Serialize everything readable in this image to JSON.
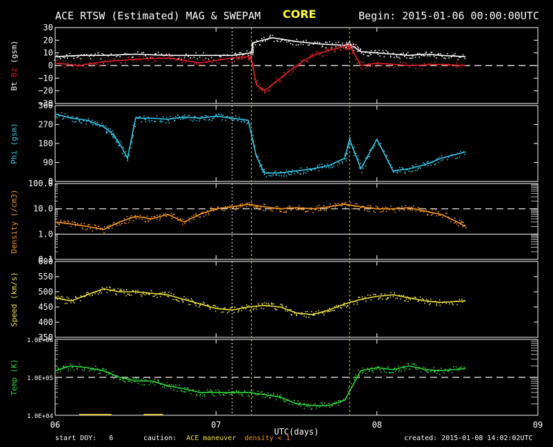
{
  "header": {
    "title": "ACE RTSW (Estimated) MAG & SWEPAM",
    "badge": "CORE",
    "begin": "Begin: 2015-01-06 00:00:00UTC"
  },
  "footer": {
    "start_doy_label": "start DOY:",
    "start_doy_value": "6",
    "caution_label": "caution:",
    "caution_maneuver": "ACE maneuver",
    "caution_density": "density < 1",
    "created": "created: 2015-01-08 14:02:02UTC"
  },
  "colors": {
    "bt": "#ffffff",
    "bz": "#e0202a",
    "phi": "#33c8e6",
    "density": "#f0961e",
    "speed": "#e8e03a",
    "temp": "#2fd43a",
    "marker": "#e8c84a",
    "vline": "#ffffff"
  },
  "chart_data": {
    "type": "scatter",
    "x_axis": {
      "label": "UTC(days)",
      "range": [
        6,
        9
      ],
      "ticks": [
        "06",
        "07",
        "08",
        "09"
      ]
    },
    "event_lines": {
      "white_dotted": [
        7.1
      ],
      "yellow_dotted": [
        7.22,
        7.83
      ]
    },
    "panels": [
      {
        "id": "mag-b",
        "ylabel_parts": [
          "Bt",
          "Bz",
          "(gsm)"
        ],
        "ylim": [
          -30,
          30
        ],
        "yticks": [
          "30",
          "20",
          "10",
          "0",
          "−10",
          "−20",
          "−30"
        ],
        "dashed_ref": 0,
        "series": [
          {
            "name": "Bt",
            "x": [
              6.0,
              6.15,
              6.3,
              6.5,
              6.7,
              6.9,
              7.1,
              7.22,
              7.23,
              7.35,
              7.5,
              7.65,
              7.8,
              7.83,
              7.9,
              8.0,
              8.1,
              8.2,
              8.3,
              8.4,
              8.55
            ],
            "y": [
              7,
              8,
              8,
              9,
              8,
              8,
              8,
              10,
              18,
              22,
              19,
              17,
              16,
              17,
              11,
              10,
              9,
              8,
              9,
              8,
              7
            ]
          },
          {
            "name": "Bz",
            "x": [
              6.0,
              6.15,
              6.3,
              6.5,
              6.7,
              6.9,
              7.1,
              7.2,
              7.22,
              7.25,
              7.3,
              7.4,
              7.5,
              7.6,
              7.7,
              7.8,
              7.83,
              7.9,
              8.0,
              8.2,
              8.4,
              8.55
            ],
            "y": [
              2,
              0,
              3,
              5,
              6,
              2,
              6,
              7,
              5,
              -15,
              -20,
              -10,
              0,
              8,
              12,
              15,
              16,
              0,
              2,
              0,
              1,
              0
            ]
          }
        ]
      },
      {
        "id": "mag-phi",
        "ylabel_parts": [
          "Phi",
          "(gsm)"
        ],
        "ylim": [
          0,
          360
        ],
        "yticks": [
          "360",
          "270",
          "180",
          "90",
          "0"
        ],
        "dashed_ref": null,
        "series": [
          {
            "name": "Phi",
            "x": [
              6.0,
              6.1,
              6.2,
              6.3,
              6.35,
              6.4,
              6.45,
              6.5,
              6.6,
              6.7,
              6.8,
              6.9,
              7.0,
              7.1,
              7.2,
              7.25,
              7.3,
              7.4,
              7.5,
              7.6,
              7.7,
              7.8,
              7.83,
              7.9,
              8.0,
              8.1,
              8.2,
              8.3,
              8.4,
              8.55
            ],
            "y": [
              320,
              300,
              290,
              260,
              230,
              180,
              110,
              300,
              300,
              295,
              305,
              300,
              310,
              300,
              290,
              120,
              40,
              40,
              50,
              60,
              75,
              110,
              200,
              60,
              200,
              50,
              60,
              80,
              110,
              140
            ]
          }
        ]
      },
      {
        "id": "density",
        "ylabel_parts": [
          "Density",
          "(/cm3)"
        ],
        "ylim": [
          0.1,
          100
        ],
        "log": true,
        "yticks": [
          "100.0",
          "10.0",
          "1.0",
          "0.1"
        ],
        "dashed_ref": 10,
        "solid_ref": 1,
        "series": [
          {
            "name": "Density",
            "x": [
              6.0,
              6.1,
              6.2,
              6.3,
              6.4,
              6.5,
              6.6,
              6.7,
              6.8,
              6.9,
              7.0,
              7.1,
              7.2,
              7.3,
              7.4,
              7.5,
              7.6,
              7.7,
              7.8,
              7.9,
              8.0,
              8.1,
              8.2,
              8.3,
              8.4,
              8.5,
              8.55
            ],
            "y": [
              3,
              2.5,
              2,
              1.5,
              3,
              5,
              4,
              6,
              3,
              6,
              10,
              12,
              15,
              12,
              10,
              11,
              10,
              12,
              15,
              12,
              10,
              10,
              11,
              8,
              6,
              3,
              2
            ]
          }
        ]
      },
      {
        "id": "speed",
        "ylabel_parts": [
          "Speed",
          "(km/s)"
        ],
        "ylim": [
          350,
          600
        ],
        "yticks": [
          "600",
          "550",
          "500",
          "450",
          "400",
          "350"
        ],
        "dashed_ref": null,
        "series": [
          {
            "name": "Speed",
            "x": [
              6.0,
              6.1,
              6.2,
              6.3,
              6.4,
              6.5,
              6.6,
              6.7,
              6.8,
              6.9,
              7.0,
              7.1,
              7.2,
              7.3,
              7.4,
              7.5,
              7.6,
              7.7,
              7.8,
              7.9,
              8.0,
              8.1,
              8.2,
              8.3,
              8.4,
              8.55
            ],
            "y": [
              480,
              470,
              490,
              510,
              500,
              500,
              495,
              490,
              475,
              460,
              445,
              440,
              450,
              455,
              450,
              430,
              425,
              440,
              460,
              475,
              485,
              490,
              480,
              470,
              465,
              470
            ]
          }
        ]
      },
      {
        "id": "temp",
        "ylabel_parts": [
          "Temp",
          "(K)"
        ],
        "ylim": [
          10000,
          1000000
        ],
        "log": true,
        "yticks": [
          "1.0E+06",
          "1.0E+05",
          "1.0E+04"
        ],
        "dashed_ref": 100000,
        "series": [
          {
            "name": "Temp",
            "x": [
              6.0,
              6.1,
              6.2,
              6.3,
              6.4,
              6.5,
              6.6,
              6.7,
              6.8,
              6.9,
              7.0,
              7.1,
              7.2,
              7.3,
              7.4,
              7.5,
              7.6,
              7.7,
              7.8,
              7.9,
              8.0,
              8.1,
              8.2,
              8.3,
              8.4,
              8.55
            ],
            "y": [
              150000,
              200000,
              180000,
              150000,
              100000,
              80000,
              80000,
              60000,
              50000,
              40000,
              40000,
              40000,
              40000,
              35000,
              30000,
              20000,
              18000,
              18000,
              25000,
              150000,
              180000,
              160000,
              200000,
              160000,
              150000,
              170000
            ]
          }
        ]
      }
    ],
    "maneuver_bars": [
      {
        "x0": 6.15,
        "x1": 6.35,
        "kind": "maneuver"
      },
      {
        "x0": 6.55,
        "x1": 6.67,
        "kind": "maneuver"
      }
    ]
  }
}
